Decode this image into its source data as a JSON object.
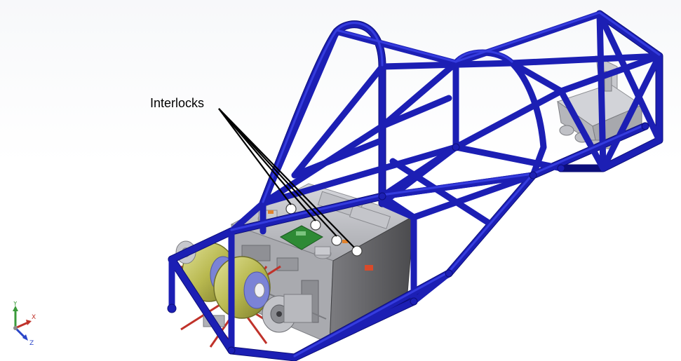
{
  "callout": {
    "label": "Interlocks"
  },
  "triad": {
    "x_label": "X",
    "y_label": "Y",
    "z_label": "Z"
  },
  "colors": {
    "frame_tube": "#1c1fb4",
    "frame_tube_highlight": "#3a42e6",
    "frame_tube_shadow": "#0c0e7a",
    "box_body": "#c6c7cc",
    "box_shadow": "#6f6f73",
    "box_dark": "#3a3a3d",
    "motor_coil": "#c2c25a",
    "motor_disc": "#7b83d6",
    "red_bracing": "#c0322a",
    "green_pcb": "#2e8a35",
    "callout_line": "#000000"
  }
}
